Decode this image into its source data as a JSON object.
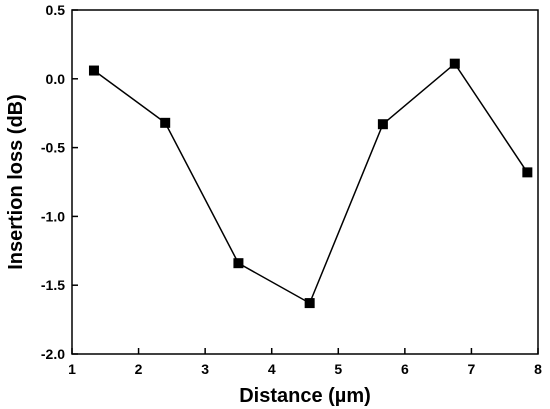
{
  "chart_data": {
    "type": "line",
    "xlabel": "Distance (µm)",
    "ylabel": "Insertion loss (dB)",
    "xlim": [
      1,
      8
    ],
    "ylim": [
      -2.0,
      0.5
    ],
    "xticks": [
      1,
      2,
      3,
      4,
      5,
      6,
      7,
      8
    ],
    "xtick_labels": [
      "1",
      "2",
      "3",
      "4",
      "5",
      "6",
      "7",
      "8"
    ],
    "yticks": [
      -2.0,
      -1.5,
      -1.0,
      -0.5,
      0.0,
      0.5
    ],
    "ytick_labels": [
      "-2.0",
      "-1.5",
      "-1.0",
      "-0.5",
      "0.0",
      "0.5"
    ],
    "series": [
      {
        "x": [
          1.33,
          2.4,
          3.5,
          4.57,
          5.67,
          6.75,
          7.84
        ],
        "y": [
          0.06,
          -0.32,
          -1.34,
          -1.63,
          -0.33,
          0.11,
          -0.68
        ]
      }
    ],
    "marker": "square",
    "color": "#000000",
    "grid": false,
    "legend": "none"
  }
}
